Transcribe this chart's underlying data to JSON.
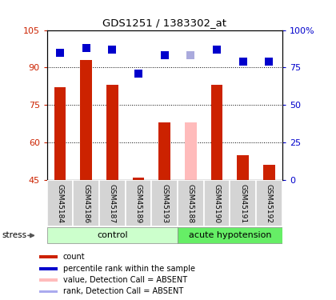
{
  "title": "GDS1251 / 1383302_at",
  "samples": [
    "GSM45184",
    "GSM45186",
    "GSM45187",
    "GSM45189",
    "GSM45193",
    "GSM45188",
    "GSM45190",
    "GSM45191",
    "GSM45192"
  ],
  "bar_values": [
    82,
    93,
    83,
    46,
    68,
    68,
    83,
    55,
    51
  ],
  "bar_colors": [
    "#cc2200",
    "#cc2200",
    "#cc2200",
    "#cc2200",
    "#cc2200",
    "#ffbbbb",
    "#cc2200",
    "#cc2200",
    "#cc2200"
  ],
  "rank_values": [
    85,
    88,
    87,
    71,
    83,
    83,
    87,
    79,
    79
  ],
  "rank_colors": [
    "#0000cc",
    "#0000cc",
    "#0000cc",
    "#0000cc",
    "#0000cc",
    "#aaaadd",
    "#0000cc",
    "#0000cc",
    "#0000cc"
  ],
  "rank_absent": [
    false,
    false,
    false,
    false,
    false,
    true,
    false,
    false,
    false
  ],
  "ylim_left": [
    45,
    105
  ],
  "ylim_right": [
    0,
    100
  ],
  "yticks_left": [
    45,
    60,
    75,
    90,
    105
  ],
  "ytick_labels_left": [
    "45",
    "60",
    "75",
    "90",
    "105"
  ],
  "yticks_right": [
    0,
    25,
    50,
    75,
    100
  ],
  "ytick_labels_right": [
    "0",
    "25",
    "50",
    "75",
    "100%"
  ],
  "groups": [
    {
      "label": "control",
      "start": 0,
      "end": 5,
      "color": "#ccffcc"
    },
    {
      "label": "acute hypotension",
      "start": 5,
      "end": 9,
      "color": "#66ee66"
    }
  ],
  "bar_width": 0.45,
  "rank_marker_size": 45,
  "tick_label_color_left": "#cc2200",
  "tick_label_color_right": "#0000cc",
  "legend_items": [
    {
      "label": "count",
      "color": "#cc2200",
      "type": "square"
    },
    {
      "label": "percentile rank within the sample",
      "color": "#0000cc",
      "type": "square"
    },
    {
      "label": "value, Detection Call = ABSENT",
      "color": "#ffbbbb",
      "type": "square"
    },
    {
      "label": "rank, Detection Call = ABSENT",
      "color": "#aaaaee",
      "type": "square"
    }
  ]
}
